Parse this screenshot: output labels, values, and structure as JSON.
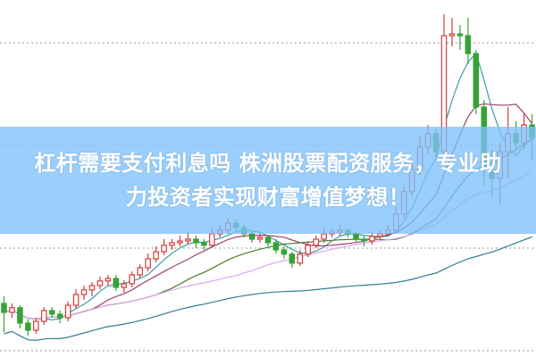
{
  "title": {
    "line1": "杠杆需要支付利息吗 株洲股票配资服务，专业助",
    "line2": "力投资者实现财富增值梦想！"
  },
  "chart_data": {
    "type": "candlestick",
    "ylim": [
      0,
      100
    ],
    "grid": "horizontal dotted",
    "colors": {
      "up": "#d23c3c",
      "down": "#36a336",
      "banner": "#7dc0fa"
    },
    "moving_averages": [
      {
        "period": 5,
        "color": "#3a9fa6"
      },
      {
        "period": 10,
        "color": "#a0406a"
      },
      {
        "period": 20,
        "color": "#4d7d2d"
      },
      {
        "period": 30,
        "color": "#dba4ea"
      },
      {
        "period": 60,
        "color": "#2f7f8f"
      }
    ],
    "candles": [
      [
        15,
        17,
        7,
        12.5
      ],
      [
        12.5,
        15,
        11,
        13.8
      ],
      [
        13.8,
        14.5,
        8,
        9.5
      ],
      [
        9.5,
        10.5,
        6,
        7.5
      ],
      [
        7.5,
        11,
        6.5,
        10
      ],
      [
        10,
        14,
        9,
        13
      ],
      [
        13,
        14,
        11,
        12
      ],
      [
        12,
        13,
        9.5,
        11
      ],
      [
        11,
        15.5,
        10,
        14.5
      ],
      [
        14.5,
        19,
        13.5,
        17.5
      ],
      [
        17.5,
        20,
        16,
        18.8
      ],
      [
        18.8,
        21,
        17,
        20
      ],
      [
        20,
        22.5,
        19,
        21.3
      ],
      [
        21.3,
        23,
        20,
        22
      ],
      [
        22,
        23,
        18.5,
        19.5
      ],
      [
        19.5,
        21.5,
        18,
        20.5
      ],
      [
        20.5,
        24,
        19.5,
        23
      ],
      [
        23,
        26,
        22,
        25
      ],
      [
        25,
        29,
        24,
        27.5
      ],
      [
        27.5,
        31,
        26.5,
        29.5
      ],
      [
        29.5,
        33,
        28.5,
        31.3
      ],
      [
        31.3,
        33,
        30,
        32
      ],
      [
        32,
        34,
        31,
        32.5
      ],
      [
        32.5,
        35,
        31.5,
        33
      ],
      [
        33,
        34,
        30.5,
        32
      ],
      [
        32,
        33,
        30,
        31.3
      ],
      [
        31.3,
        36,
        30.5,
        34.5
      ],
      [
        34.5,
        37,
        33.5,
        35.5
      ],
      [
        35.5,
        39,
        34.5,
        37.5
      ],
      [
        37.5,
        38.5,
        35,
        36.3
      ],
      [
        36.3,
        37,
        33.5,
        34.5
      ],
      [
        34.5,
        35.5,
        32,
        33
      ],
      [
        33,
        35,
        32,
        33.5
      ],
      [
        33.5,
        34,
        31,
        32
      ],
      [
        32,
        33,
        29,
        30
      ],
      [
        30,
        31,
        27.5,
        28.8
      ],
      [
        28.8,
        29.5,
        25,
        26.3
      ],
      [
        26.3,
        30,
        25.5,
        28.8
      ],
      [
        28.8,
        32.5,
        28,
        31.3
      ],
      [
        31.3,
        34,
        30.5,
        33
      ],
      [
        33,
        36,
        32,
        34.5
      ],
      [
        34.5,
        36,
        33.5,
        35
      ],
      [
        35,
        37,
        34,
        35.5
      ],
      [
        35.5,
        36,
        33.5,
        34.5
      ],
      [
        34.5,
        35,
        32,
        33
      ],
      [
        33,
        34,
        31,
        32.5
      ],
      [
        32.5,
        35,
        31.5,
        33.8
      ],
      [
        33.8,
        35.5,
        33,
        34.5
      ],
      [
        34.5,
        37,
        34,
        35.5
      ],
      [
        35.5,
        42,
        35,
        40
      ],
      [
        40,
        48,
        39,
        46.3
      ],
      [
        46.3,
        55,
        45,
        52.5
      ],
      [
        52.5,
        62,
        51,
        58.8
      ],
      [
        58.8,
        65,
        57,
        62.5
      ],
      [
        62.5,
        64,
        56,
        57.5
      ],
      [
        57.5,
        96,
        55,
        90
      ],
      [
        90,
        95,
        87,
        90.5
      ],
      [
        90.5,
        93,
        86,
        90
      ],
      [
        90,
        95,
        82,
        85
      ],
      [
        85,
        86,
        68,
        70
      ],
      [
        70,
        72,
        48,
        52.5
      ],
      [
        52.5,
        58,
        45,
        50
      ],
      [
        50,
        60,
        43,
        57.5
      ],
      [
        57.5,
        70,
        50,
        62.5
      ],
      [
        62.5,
        66,
        58,
        60
      ],
      [
        60,
        68,
        58,
        65
      ],
      [
        65,
        68,
        55,
        61.3
      ]
    ]
  }
}
